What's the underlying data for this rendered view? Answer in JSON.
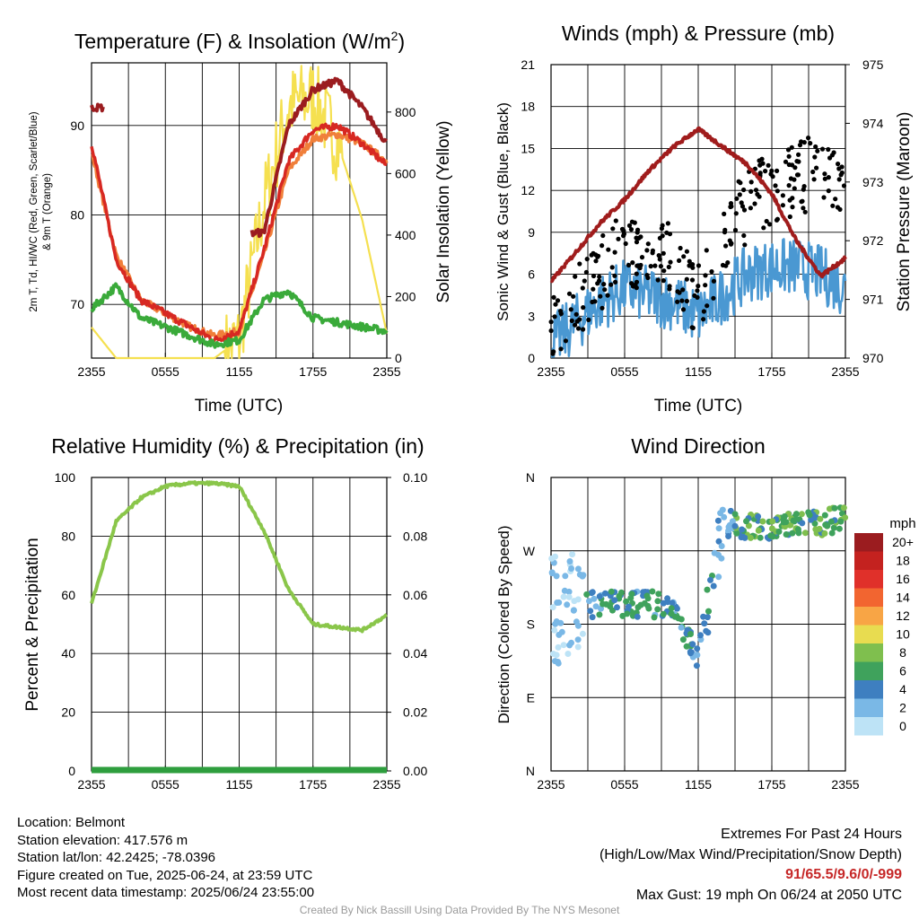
{
  "panels": {
    "temp": {
      "title_main": "Temperature (F) & Insolation (W/m",
      "title_sup": "2",
      "title_end": ")",
      "ylabel_left": "2m T, Tₐ, HI/WC (Red, Green, Scarlet/Blue) & 9m T (Orange)",
      "ylabel_left_line1": "2m T, Td, HI/WC (Red, Green, Scarlet/Blue)",
      "ylabel_left_line2": "& 9m T (Orange)",
      "ylabel_right": "Solar Insolation (Yellow)",
      "xlabel": "Time (UTC)",
      "left_ticks": [
        "70",
        "80",
        "90"
      ],
      "right_ticks": [
        "0",
        "200",
        "400",
        "600",
        "800"
      ]
    },
    "wind": {
      "title": "Winds (mph) & Pressure (mb)",
      "ylabel_left": "Sonic Wind & Gust (Blue, Black)",
      "ylabel_right": "Station Pressure (Maroon)",
      "xlabel": "Time (UTC)",
      "left_ticks": [
        "0",
        "3",
        "6",
        "9",
        "12",
        "15",
        "18",
        "21"
      ],
      "right_ticks": [
        "970",
        "971",
        "972",
        "973",
        "974",
        "975"
      ]
    },
    "rh": {
      "title": "Relative Humidity (%) & Precipitation (in)",
      "ylabel_left": "Percent & Precipitation",
      "left_ticks": [
        "0",
        "20",
        "40",
        "60",
        "80",
        "100"
      ],
      "right_ticks": [
        "0.00",
        "0.02",
        "0.04",
        "0.06",
        "0.08",
        "0.10"
      ]
    },
    "dir": {
      "title": "Wind Direction",
      "ylabel_left": "Direction (Colored By Speed)",
      "left_ticks": [
        "N",
        "E",
        "S",
        "W",
        "N"
      ],
      "legend_title": "mph",
      "legend_labels": [
        "20+",
        "18",
        "16",
        "14",
        "12",
        "10",
        "8",
        "6",
        "4",
        "2",
        "0"
      ],
      "legend_colors": [
        "#9b1c1f",
        "#c4221f",
        "#e0302a",
        "#f26530",
        "#f8a545",
        "#e8dc50",
        "#7fbf4e",
        "#3fa25c",
        "#3e7fc0",
        "#7ab8e6",
        "#bde3f6"
      ]
    }
  },
  "x_ticks": [
    "2355",
    "0555",
    "1155",
    "1755",
    "2355"
  ],
  "footer": {
    "location": "Location: Belmont",
    "elevation": "Station elevation: 417.576 m",
    "latlon": "Station lat/lon: 42.2425; -78.0396",
    "created": "Figure created on Tue, 2025-06-24, at 23:59 UTC",
    "recent": "Most recent data timestamp: 2025/06/24 23:55:00",
    "extremes_title": "Extremes For Past 24 Hours",
    "extremes_desc": "(High/Low/Max Wind/Precipitation/Snow Depth)",
    "extremes_values": "91/65.5/9.6/0/-999",
    "max_gust": "Max Gust: 19 mph On 06/24 at 2050 UTC",
    "credit": "Created By Nick Bassill Using Data Provided By The NYS Mesonet"
  },
  "colors": {
    "temp_2m": "#d72822",
    "temp_9m": "#f07f3a",
    "dewpoint": "#3aaa3a",
    "heat_index": "#9b1c1f",
    "insolation": "#f5e050",
    "wind_sonic": "#4a98d2",
    "gust": "#000000",
    "pressure": "#a01c1c",
    "rh": "#8ac64a",
    "precip": "#2e9e3e"
  },
  "chart_data": [
    {
      "type": "line",
      "title": "Temperature (F) & Insolation (W/m2)",
      "xlabel": "Time (UTC)",
      "ylabel": "2m T, Td, HI/WC (Red, Green, Scarlet/Blue) & 9m T (Orange)",
      "ylabel_right": "Solar Insolation (Yellow)",
      "x": [
        "2355",
        "0155",
        "0355",
        "0555",
        "0755",
        "0955",
        "1155",
        "1355",
        "1555",
        "1755",
        "1955",
        "2155",
        "2355"
      ],
      "ylim": [
        64,
        97
      ],
      "ylim_right": [
        0,
        960
      ],
      "series": [
        {
          "name": "2m T",
          "axis": "left",
          "values": [
            88,
            75,
            70.5,
            69,
            67.5,
            66,
            67,
            76,
            86,
            89.5,
            90,
            88,
            85.5
          ]
        },
        {
          "name": "9m T",
          "axis": "left",
          "values": [
            87,
            75.5,
            70.5,
            69,
            67.5,
            66.5,
            67,
            75.5,
            85,
            88.5,
            89,
            88,
            86
          ]
        },
        {
          "name": "Td",
          "axis": "left",
          "values": [
            69.5,
            72,
            68.5,
            67.5,
            66.5,
            65.5,
            66,
            70.5,
            71.5,
            68.5,
            68,
            67.5,
            67
          ]
        },
        {
          "name": "HI/WC",
          "axis": "left",
          "values": [
            92,
            null,
            null,
            null,
            null,
            null,
            null,
            78,
            90,
            94,
            95,
            92,
            88
          ]
        },
        {
          "name": "Solar Insolation",
          "axis": "right",
          "values": [
            100,
            0,
            0,
            0,
            0,
            0,
            60,
            500,
            820,
            850,
            700,
            450,
            80
          ]
        }
      ]
    },
    {
      "type": "line",
      "title": "Winds (mph) & Pressure (mb)",
      "xlabel": "Time (UTC)",
      "ylabel": "Sonic Wind & Gust (Blue, Black)",
      "ylabel_right": "Station Pressure (Maroon)",
      "x": [
        "2355",
        "0155",
        "0355",
        "0555",
        "0755",
        "0955",
        "1155",
        "1355",
        "1555",
        "1755",
        "1955",
        "2155",
        "2355"
      ],
      "ylim": [
        0,
        21
      ],
      "ylim_right": [
        970,
        975
      ],
      "series": [
        {
          "name": "Sonic Wind",
          "axis": "left",
          "values": [
            1,
            2.5,
            4,
            5,
            4.5,
            4,
            3,
            4.5,
            6,
            6.5,
            6.5,
            6,
            5
          ]
        },
        {
          "name": "Gust",
          "axis": "left",
          "values": [
            2,
            4,
            6,
            8,
            7.5,
            7,
            4,
            8,
            11,
            12,
            13,
            13.5,
            11
          ]
        },
        {
          "name": "Station Pressure",
          "axis": "right",
          "values": [
            971.3,
            971.8,
            972.3,
            972.7,
            973.2,
            973.6,
            973.9,
            973.6,
            973.3,
            972.8,
            972.0,
            971.4,
            971.7
          ]
        }
      ]
    },
    {
      "type": "line",
      "title": "Relative Humidity (%) & Precipitation (in)",
      "ylabel": "Percent & Precipitation",
      "x": [
        "2355",
        "0155",
        "0355",
        "0555",
        "0755",
        "0955",
        "1155",
        "1355",
        "1555",
        "1755",
        "1955",
        "2155",
        "2355"
      ],
      "ylim": [
        0,
        100
      ],
      "ylim_right": [
        0,
        0.1
      ],
      "series": [
        {
          "name": "RH",
          "axis": "left",
          "values": [
            57,
            85,
            93,
            97,
            98,
            98,
            97,
            82,
            62,
            50,
            49,
            48,
            53
          ]
        },
        {
          "name": "Precipitation",
          "axis": "right",
          "values": [
            0,
            0,
            0,
            0,
            0,
            0,
            0,
            0,
            0,
            0,
            0,
            0,
            0
          ]
        }
      ]
    },
    {
      "type": "scatter",
      "title": "Wind Direction",
      "ylabel": "Direction (Colored By Speed)",
      "y_categories": [
        "N",
        "E",
        "S",
        "W",
        "N"
      ],
      "ylim": [
        0,
        360
      ],
      "x": [
        "2355",
        "0155",
        "0355",
        "0555",
        "0755",
        "0955",
        "1155",
        "1355",
        "1555",
        "1755",
        "1955",
        "2155",
        "2355"
      ],
      "series": [
        {
          "name": "Direction",
          "values": [
            195,
            200,
            205,
            205,
            205,
            200,
            140,
            305,
            300,
            300,
            300,
            305,
            310
          ]
        }
      ],
      "color_scale": {
        "label": "mph",
        "levels": [
          "0",
          "2",
          "4",
          "6",
          "8",
          "10",
          "12",
          "14",
          "16",
          "18",
          "20+"
        ]
      }
    }
  ]
}
